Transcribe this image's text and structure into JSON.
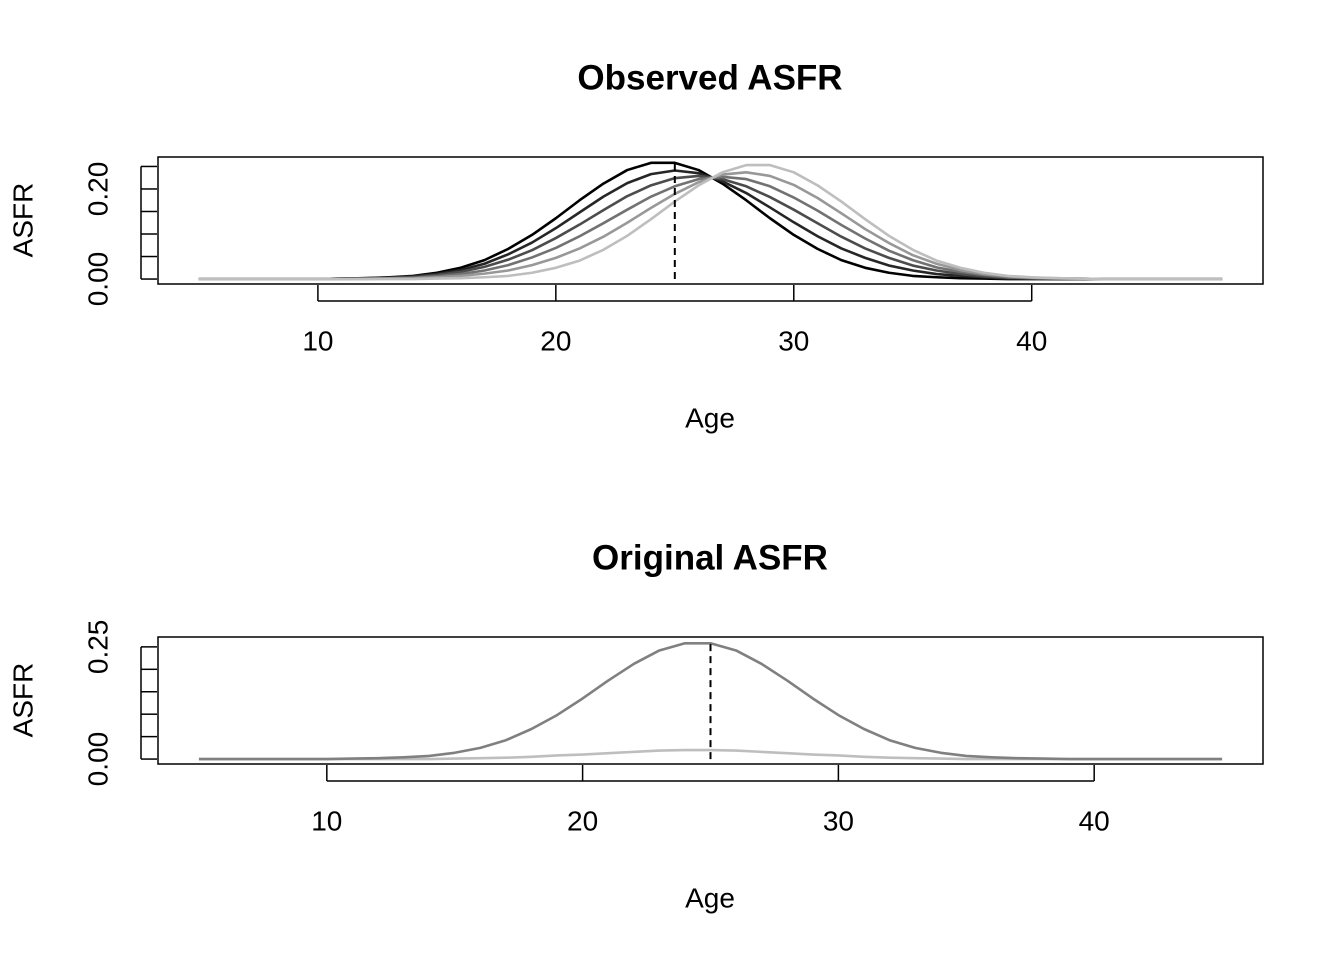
{
  "chart_data": [
    {
      "type": "line",
      "title": "Observed ASFR",
      "xlabel": "Age",
      "ylabel": "ASFR",
      "x": [
        5,
        6,
        7,
        8,
        9,
        10,
        11,
        12,
        13,
        14,
        15,
        16,
        17,
        18,
        19,
        20,
        21,
        22,
        23,
        24,
        25,
        26,
        27,
        28,
        29,
        30,
        31,
        32,
        33,
        34,
        35,
        36,
        37,
        38,
        39,
        40,
        41,
        42,
        43,
        44,
        45,
        46,
        47,
        48
      ],
      "series": [
        {
          "color": "#000000",
          "values": [
            0,
            0,
            0,
            0,
            0,
            0,
            0.001,
            0.002,
            0.004,
            0.007,
            0.014,
            0.025,
            0.042,
            0.067,
            0.098,
            0.135,
            0.175,
            0.212,
            0.242,
            0.258,
            0.258,
            0.242,
            0.212,
            0.175,
            0.135,
            0.098,
            0.067,
            0.042,
            0.025,
            0.014,
            0.007,
            0.004,
            0.002,
            0.001,
            0,
            0,
            0,
            0,
            0,
            0,
            0,
            0,
            0,
            0
          ]
        },
        {
          "color": "#262626",
          "values": [
            0,
            0,
            0,
            0,
            0,
            0,
            0.001,
            0.002,
            0.003,
            0.006,
            0.011,
            0.02,
            0.034,
            0.055,
            0.081,
            0.113,
            0.148,
            0.183,
            0.213,
            0.233,
            0.241,
            0.235,
            0.217,
            0.191,
            0.159,
            0.126,
            0.095,
            0.068,
            0.047,
            0.03,
            0.019,
            0.011,
            0.007,
            0.004,
            0.001,
            0.001,
            0,
            0,
            0,
            0,
            0,
            0,
            0,
            0
          ]
        },
        {
          "color": "#4c4c4c",
          "values": [
            0,
            0,
            0,
            0,
            0,
            0,
            0.001,
            0.001,
            0.002,
            0.004,
            0.009,
            0.016,
            0.027,
            0.043,
            0.064,
            0.091,
            0.121,
            0.153,
            0.184,
            0.208,
            0.224,
            0.229,
            0.222,
            0.206,
            0.182,
            0.154,
            0.124,
            0.094,
            0.068,
            0.047,
            0.03,
            0.019,
            0.011,
            0.006,
            0.003,
            0.002,
            0.001,
            0,
            0,
            0,
            0,
            0,
            0,
            0
          ]
        },
        {
          "color": "#727272",
          "values": [
            0,
            0,
            0,
            0,
            0,
            0,
            0,
            0.001,
            0.002,
            0.003,
            0.006,
            0.011,
            0.019,
            0.031,
            0.048,
            0.069,
            0.095,
            0.124,
            0.154,
            0.183,
            0.206,
            0.222,
            0.227,
            0.222,
            0.206,
            0.181,
            0.152,
            0.12,
            0.09,
            0.063,
            0.042,
            0.026,
            0.016,
            0.009,
            0.004,
            0.002,
            0.001,
            0.001,
            0,
            0,
            0,
            0,
            0,
            0
          ]
        },
        {
          "color": "#989898",
          "values": [
            0,
            0,
            0,
            0,
            0,
            0,
            0,
            0,
            0.001,
            0.001,
            0.004,
            0.007,
            0.012,
            0.019,
            0.031,
            0.047,
            0.068,
            0.094,
            0.125,
            0.158,
            0.189,
            0.215,
            0.232,
            0.237,
            0.229,
            0.209,
            0.18,
            0.146,
            0.111,
            0.08,
            0.053,
            0.034,
            0.02,
            0.011,
            0.006,
            0.003,
            0.002,
            0.001,
            0,
            0,
            0,
            0,
            0,
            0
          ]
        },
        {
          "color": "#bebebe",
          "values": [
            0,
            0,
            0,
            0,
            0,
            0,
            0,
            0,
            0,
            0,
            0.001,
            0.002,
            0.004,
            0.007,
            0.014,
            0.025,
            0.041,
            0.065,
            0.096,
            0.133,
            0.172,
            0.208,
            0.237,
            0.253,
            0.253,
            0.237,
            0.208,
            0.172,
            0.133,
            0.096,
            0.065,
            0.041,
            0.025,
            0.014,
            0.007,
            0.004,
            0.002,
            0.001,
            0,
            0,
            0,
            0,
            0,
            0
          ]
        }
      ],
      "vline": 25,
      "xlim": [
        3.28,
        49.72
      ],
      "ylim": [
        -0.011,
        0.271
      ],
      "xticks": [
        10,
        20,
        30,
        40
      ],
      "yticks": [
        {
          "value": 0,
          "label": "0.00"
        },
        0.05,
        0.1,
        0.15,
        {
          "value": 0.2,
          "label": "0.20"
        },
        0.25
      ]
    },
    {
      "type": "line",
      "title": "Original ASFR",
      "xlabel": "Age",
      "ylabel": "ASFR",
      "x": [
        5,
        6,
        7,
        8,
        9,
        10,
        11,
        12,
        13,
        14,
        15,
        16,
        17,
        18,
        19,
        20,
        21,
        22,
        23,
        24,
        25,
        26,
        27,
        28,
        29,
        30,
        31,
        32,
        33,
        34,
        35,
        36,
        37,
        38,
        39,
        40,
        41,
        42,
        43,
        44,
        45
      ],
      "series": [
        {
          "color": "#bebebe",
          "values": [
            0,
            0,
            0,
            0,
            0,
            0,
            0,
            0,
            0,
            0,
            0.001,
            0.002,
            0.003,
            0.005,
            0.008,
            0.01,
            0.013,
            0.016,
            0.019,
            0.02,
            0.02,
            0.019,
            0.016,
            0.013,
            0.01,
            0.008,
            0.005,
            0.003,
            0.002,
            0.001,
            0,
            0,
            0,
            0,
            0,
            0,
            0,
            0,
            0,
            0,
            0
          ]
        },
        {
          "color": "#808080",
          "values": [
            0,
            0,
            0,
            0,
            0,
            0,
            0.001,
            0.002,
            0.004,
            0.007,
            0.014,
            0.025,
            0.042,
            0.067,
            0.098,
            0.135,
            0.175,
            0.212,
            0.242,
            0.258,
            0.258,
            0.242,
            0.212,
            0.175,
            0.135,
            0.098,
            0.067,
            0.042,
            0.025,
            0.014,
            0.007,
            0.004,
            0.002,
            0.001,
            0,
            0,
            0,
            0,
            0,
            0,
            0
          ]
        }
      ],
      "vline": 25,
      "xlim": [
        3.4,
        46.6
      ],
      "ylim": [
        -0.011,
        0.272
      ],
      "xticks": [
        10,
        20,
        30,
        40
      ],
      "yticks": [
        {
          "value": 0,
          "label": "0.00"
        },
        0.05,
        0.1,
        0.15,
        0.2,
        {
          "value": 0.25,
          "label": "0.25"
        }
      ]
    }
  ]
}
